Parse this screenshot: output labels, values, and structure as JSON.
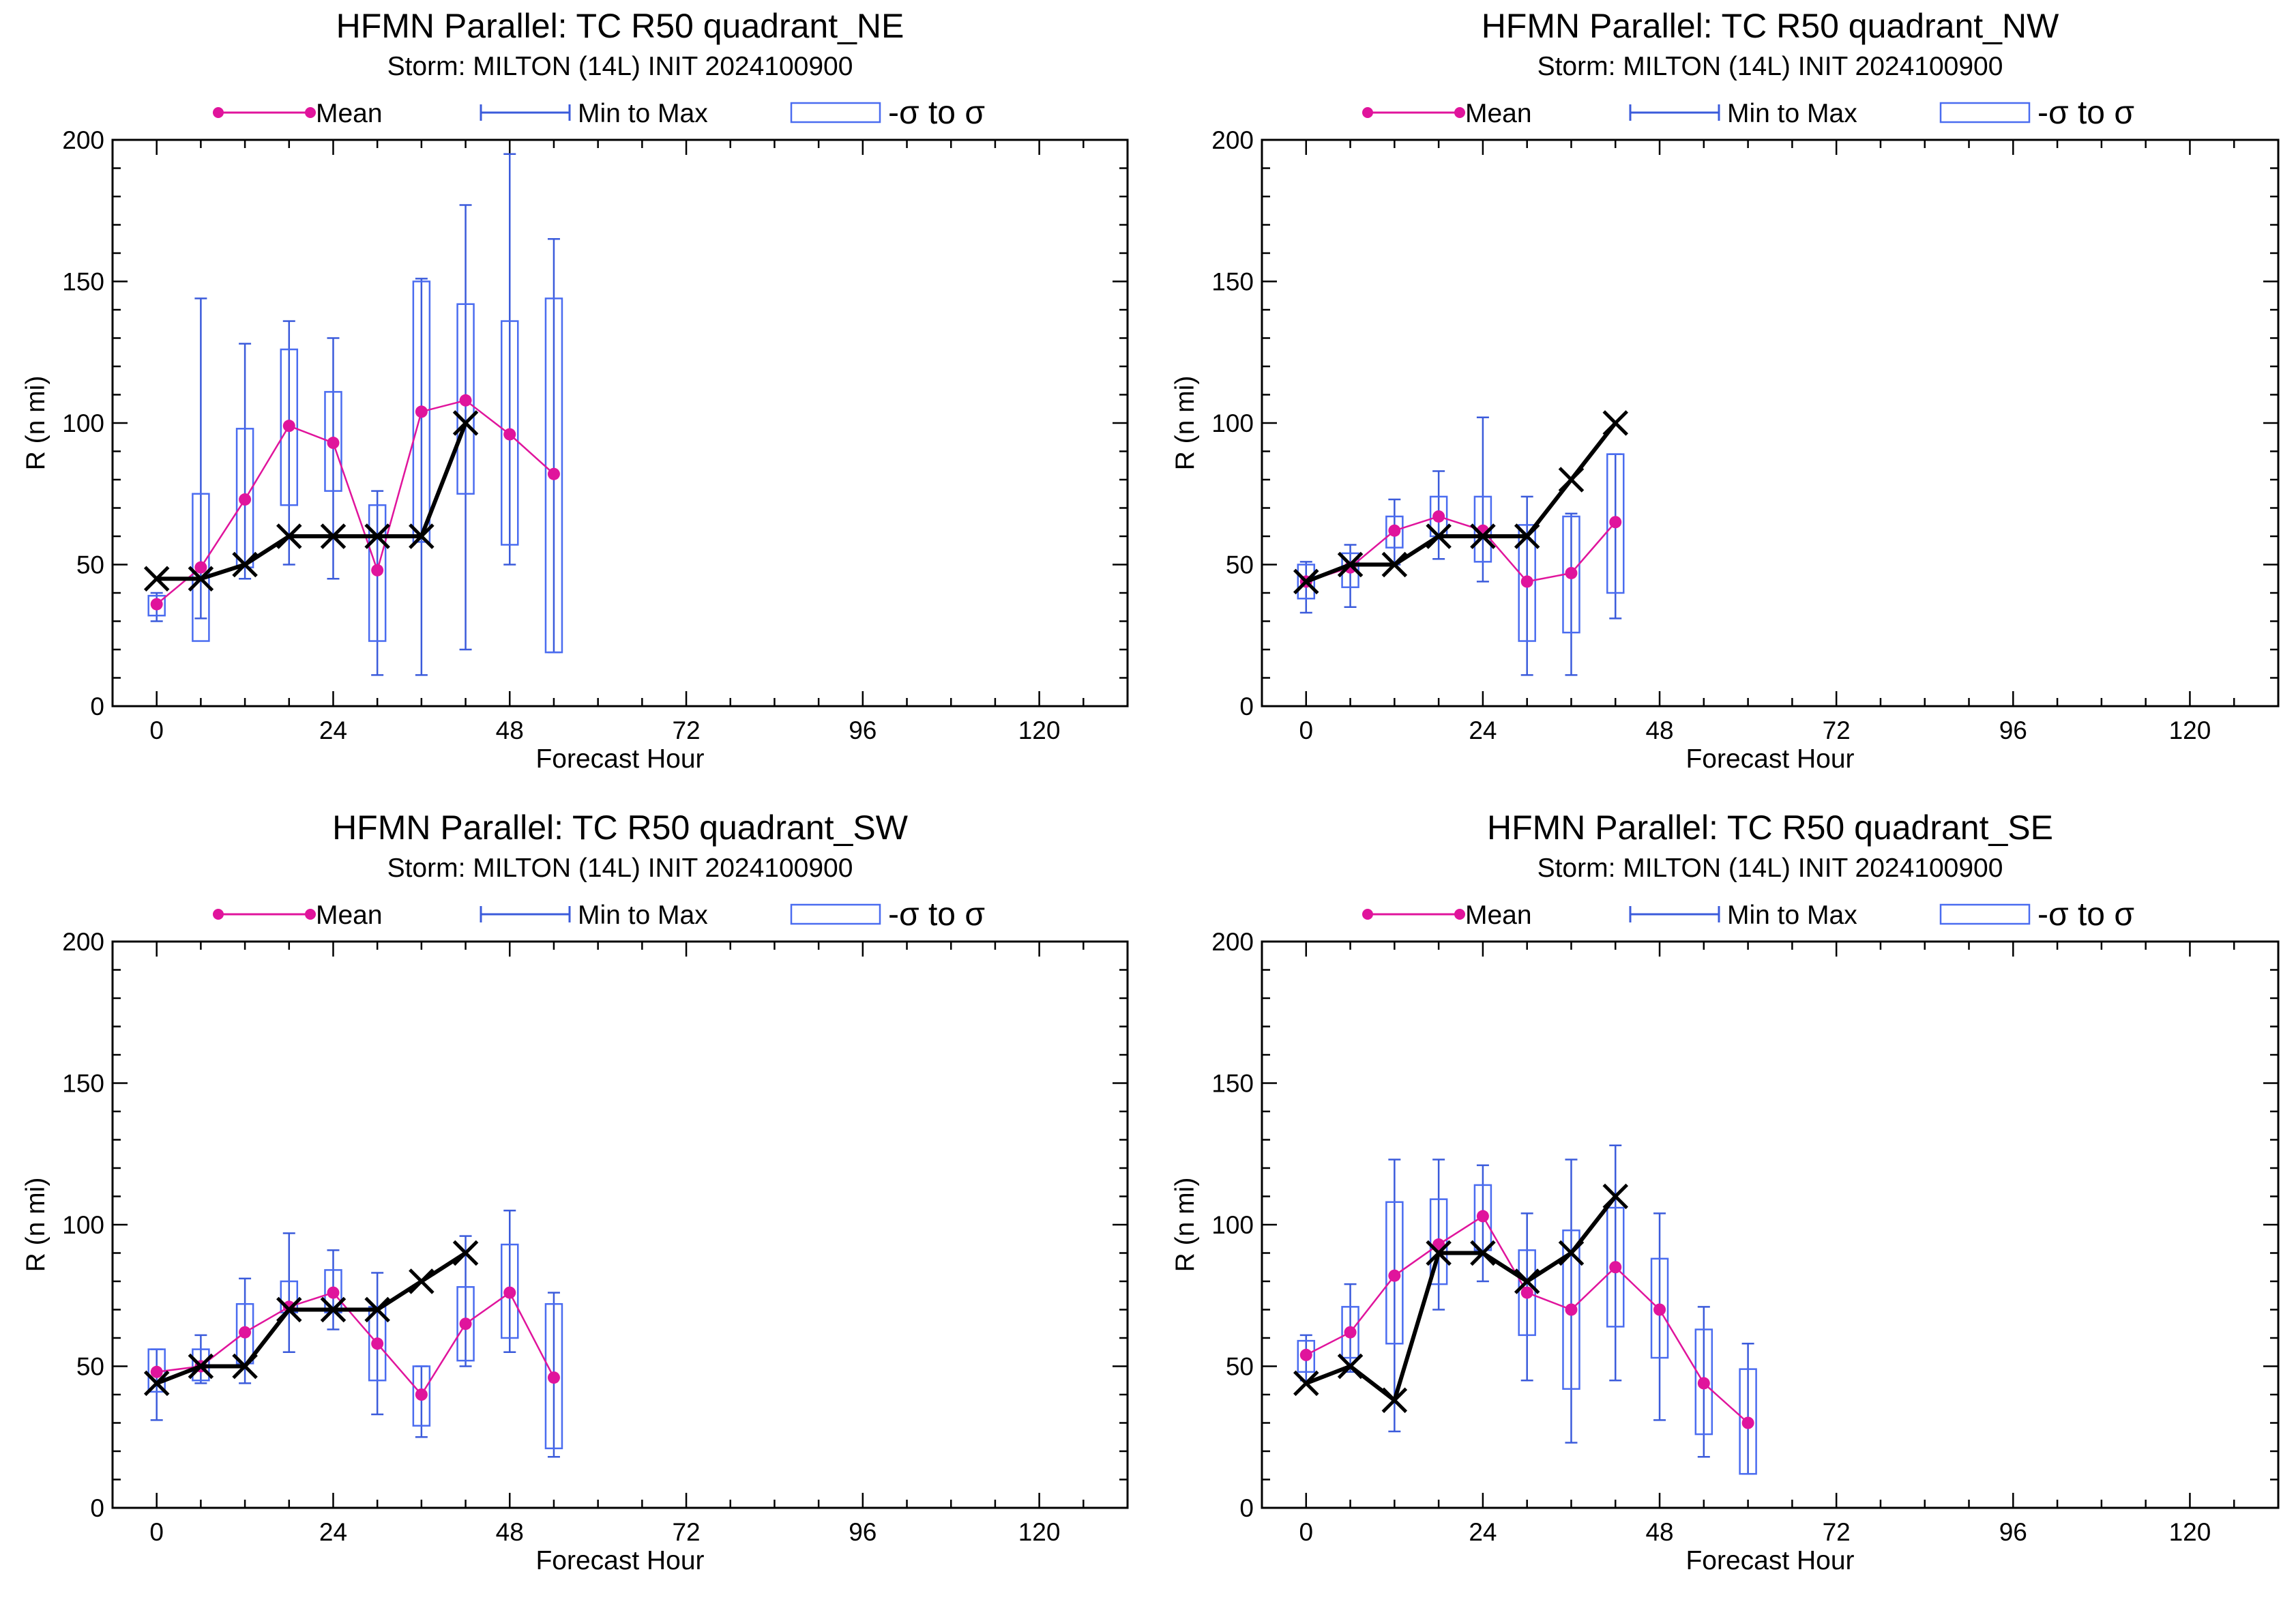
{
  "colors": {
    "mean": "#e0149c",
    "range": "#3b5bdb",
    "box": "#4a6cf0",
    "observed": "#000000",
    "axis": "#000000"
  },
  "legend": {
    "mean_label": "Mean",
    "range_label": "Min to Max",
    "sigma_label": "-σ to σ"
  },
  "chart_data": [
    {
      "type": "box",
      "title": "HFMN Parallel: TC  R50 quadrant_NE",
      "subtitle": "Storm: MILTON (14L) INIT 2024100900",
      "xlabel": "Forecast Hour",
      "ylabel": "R (n mi)",
      "xlim": [
        -6,
        132
      ],
      "ylim": [
        0,
        200
      ],
      "xticks": [
        0,
        24,
        48,
        72,
        96,
        120
      ],
      "yticks": [
        0,
        50,
        100,
        150,
        200
      ],
      "stats": [
        {
          "x": 0,
          "min": 30,
          "max": 40,
          "box_low": 32,
          "box_high": 39,
          "mean": 36
        },
        {
          "x": 6,
          "min": 31,
          "max": 144,
          "box_low": 23,
          "box_high": 75,
          "mean": 49
        },
        {
          "x": 12,
          "min": 45,
          "max": 128,
          "box_low": 49,
          "box_high": 98,
          "mean": 73
        },
        {
          "x": 18,
          "min": 50,
          "max": 136,
          "box_low": 71,
          "box_high": 126,
          "mean": 99
        },
        {
          "x": 24,
          "min": 45,
          "max": 130,
          "box_low": 76,
          "box_high": 111,
          "mean": 93
        },
        {
          "x": 30,
          "min": 11,
          "max": 76,
          "box_low": 23,
          "box_high": 71,
          "mean": 48
        },
        {
          "x": 36,
          "min": 11,
          "max": 151,
          "box_low": 58,
          "box_high": 150,
          "mean": 104
        },
        {
          "x": 42,
          "min": 20,
          "max": 177,
          "box_low": 75,
          "box_high": 142,
          "mean": 108
        },
        {
          "x": 48,
          "min": 50,
          "max": 195,
          "box_low": 57,
          "box_high": 136,
          "mean": 96
        },
        {
          "x": 54,
          "min": 19,
          "max": 165,
          "box_low": 19,
          "box_high": 144,
          "mean": 82
        }
      ],
      "observed": {
        "x": [
          0,
          6,
          12,
          18,
          24,
          30,
          36,
          42
        ],
        "y": [
          45,
          45,
          50,
          60,
          60,
          60,
          60,
          100
        ]
      }
    },
    {
      "type": "box",
      "title": "HFMN Parallel: TC  R50 quadrant_NW",
      "subtitle": "Storm: MILTON (14L) INIT 2024100900",
      "xlabel": "Forecast Hour",
      "ylabel": "R (n mi)",
      "xlim": [
        -6,
        132
      ],
      "ylim": [
        0,
        200
      ],
      "xticks": [
        0,
        24,
        48,
        72,
        96,
        120
      ],
      "yticks": [
        0,
        50,
        100,
        150,
        200
      ],
      "stats": [
        {
          "x": 0,
          "min": 33,
          "max": 51,
          "box_low": 38,
          "box_high": 50,
          "mean": 44
        },
        {
          "x": 6,
          "min": 35,
          "max": 57,
          "box_low": 42,
          "box_high": 54,
          "mean": 49
        },
        {
          "x": 12,
          "min": 50,
          "max": 73,
          "box_low": 56,
          "box_high": 67,
          "mean": 62
        },
        {
          "x": 18,
          "min": 52,
          "max": 83,
          "box_low": 60,
          "box_high": 74,
          "mean": 67
        },
        {
          "x": 24,
          "min": 44,
          "max": 102,
          "box_low": 51,
          "box_high": 74,
          "mean": 62
        },
        {
          "x": 30,
          "min": 11,
          "max": 74,
          "box_low": 23,
          "box_high": 64,
          "mean": 44
        },
        {
          "x": 36,
          "min": 11,
          "max": 68,
          "box_low": 26,
          "box_high": 67,
          "mean": 47
        },
        {
          "x": 42,
          "min": 31,
          "max": 89,
          "box_low": 40,
          "box_high": 89,
          "mean": 65
        }
      ],
      "observed": {
        "x": [
          0,
          6,
          12,
          18,
          24,
          30,
          36,
          42
        ],
        "y": [
          44,
          50,
          50,
          60,
          60,
          60,
          80,
          100
        ]
      }
    },
    {
      "type": "box",
      "title": "HFMN Parallel: TC  R50 quadrant_SW",
      "subtitle": "Storm: MILTON (14L) INIT 2024100900",
      "xlabel": "Forecast Hour",
      "ylabel": "R (n mi)",
      "xlim": [
        -6,
        132
      ],
      "ylim": [
        0,
        200
      ],
      "xticks": [
        0,
        24,
        48,
        72,
        96,
        120
      ],
      "yticks": [
        0,
        50,
        100,
        150,
        200
      ],
      "stats": [
        {
          "x": 0,
          "min": 31,
          "max": 56,
          "box_low": 41,
          "box_high": 56,
          "mean": 48
        },
        {
          "x": 6,
          "min": 44,
          "max": 61,
          "box_low": 45,
          "box_high": 56,
          "mean": 50
        },
        {
          "x": 12,
          "min": 44,
          "max": 81,
          "box_low": 51,
          "box_high": 72,
          "mean": 62
        },
        {
          "x": 18,
          "min": 55,
          "max": 97,
          "box_low": 69,
          "box_high": 80,
          "mean": 71
        },
        {
          "x": 24,
          "min": 63,
          "max": 91,
          "box_low": 69,
          "box_high": 84,
          "mean": 76
        },
        {
          "x": 30,
          "min": 33,
          "max": 83,
          "box_low": 45,
          "box_high": 71,
          "mean": 58
        },
        {
          "x": 36,
          "min": 25,
          "max": 50,
          "box_low": 29,
          "box_high": 50,
          "mean": 40
        },
        {
          "x": 42,
          "min": 50,
          "max": 96,
          "box_low": 52,
          "box_high": 78,
          "mean": 65
        },
        {
          "x": 48,
          "min": 55,
          "max": 105,
          "box_low": 60,
          "box_high": 93,
          "mean": 76
        },
        {
          "x": 54,
          "min": 18,
          "max": 76,
          "box_low": 21,
          "box_high": 72,
          "mean": 46
        }
      ],
      "observed": {
        "x": [
          0,
          6,
          12,
          18,
          24,
          30,
          36,
          42
        ],
        "y": [
          44,
          50,
          50,
          70,
          70,
          70,
          80,
          90
        ]
      }
    },
    {
      "type": "box",
      "title": "HFMN Parallel: TC  R50 quadrant_SE",
      "subtitle": "Storm: MILTON (14L) INIT 2024100900",
      "xlabel": "Forecast Hour",
      "ylabel": "R (n mi)",
      "xlim": [
        -6,
        132
      ],
      "ylim": [
        0,
        200
      ],
      "xticks": [
        0,
        24,
        48,
        72,
        96,
        120
      ],
      "yticks": [
        0,
        50,
        100,
        150,
        200
      ],
      "stats": [
        {
          "x": 0,
          "min": 45,
          "max": 61,
          "box_low": 48,
          "box_high": 59,
          "mean": 54
        },
        {
          "x": 6,
          "min": 48,
          "max": 79,
          "box_low": 53,
          "box_high": 71,
          "mean": 62
        },
        {
          "x": 12,
          "min": 27,
          "max": 123,
          "box_low": 58,
          "box_high": 108,
          "mean": 82
        },
        {
          "x": 18,
          "min": 70,
          "max": 123,
          "box_low": 79,
          "box_high": 109,
          "mean": 93
        },
        {
          "x": 24,
          "min": 80,
          "max": 121,
          "box_low": 91,
          "box_high": 114,
          "mean": 103
        },
        {
          "x": 30,
          "min": 45,
          "max": 104,
          "box_low": 61,
          "box_high": 91,
          "mean": 76
        },
        {
          "x": 36,
          "min": 23,
          "max": 123,
          "box_low": 42,
          "box_high": 98,
          "mean": 70
        },
        {
          "x": 42,
          "min": 45,
          "max": 128,
          "box_low": 64,
          "box_high": 106,
          "mean": 85
        },
        {
          "x": 48,
          "min": 31,
          "max": 104,
          "box_low": 53,
          "box_high": 88,
          "mean": 70
        },
        {
          "x": 54,
          "min": 18,
          "max": 71,
          "box_low": 26,
          "box_high": 63,
          "mean": 44
        },
        {
          "x": 60,
          "min": 12,
          "max": 58,
          "box_low": 12,
          "box_high": 49,
          "mean": 30
        }
      ],
      "observed": {
        "x": [
          0,
          6,
          12,
          18,
          24,
          30,
          36,
          42
        ],
        "y": [
          44,
          50,
          38,
          90,
          90,
          80,
          90,
          110
        ]
      }
    }
  ]
}
